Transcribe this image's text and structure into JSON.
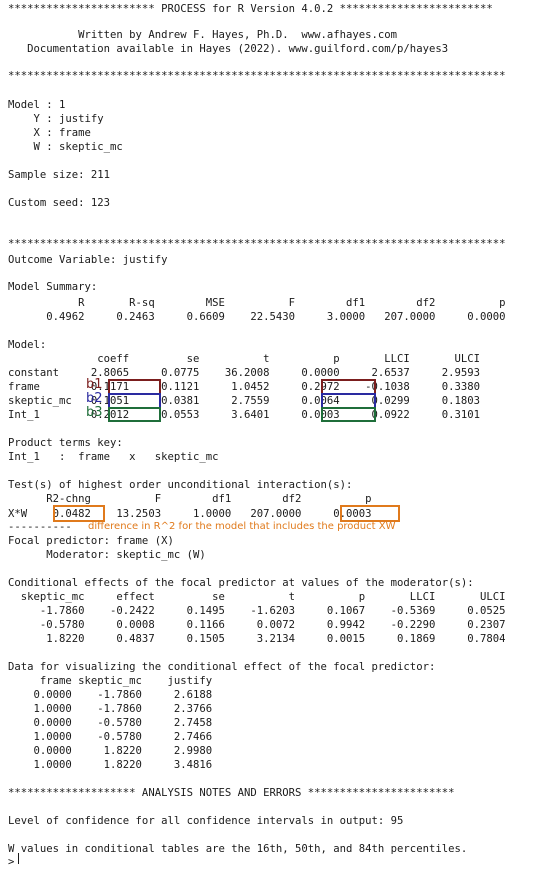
{
  "header": {
    "rule_top": "*********************** PROCESS for R Version 4.0.2 ************************",
    "author_line": "           Written by Andrew F. Hayes, Ph.D.  www.afhayes.com",
    "doc_line": "   Documentation available in Hayes (2022). www.guilford.com/p/hayes3"
  },
  "rule_stars": "******************************************************************************",
  "model": {
    "model_line": "Model : 1",
    "y_line": "    Y : justify",
    "x_line": "    X : frame",
    "w_line": "    W : skeptic_mc"
  },
  "sample_line": "Sample size: 211",
  "seed_line": "Custom seed: 123",
  "outcome_line": "Outcome Variable: justify",
  "model_summary": {
    "title": "Model Summary:",
    "header": "           R       R-sq        MSE          F        df1        df2          p",
    "row": "      0.4962     0.2463     0.6609    22.5430     3.0000   207.0000     0.0000"
  },
  "coef_table": {
    "title": "Model:",
    "header": "              coeff         se          t          p       LLCI       ULCI",
    "rows": [
      "constant     2.8065     0.0775    36.2008     0.0000     2.6537     2.9593",
      "frame        0.1171     0.1121     1.0452     0.2972    -0.1038     0.3380",
      "skeptic_mc   0.1051     0.0381     2.7559     0.0064     0.0299     0.1803",
      "Int_1        0.2012     0.0553     3.6401     0.0003     0.0922     0.3101"
    ]
  },
  "labels": {
    "b1": "b1",
    "b2": "b2",
    "b3": "b3"
  },
  "product_key": {
    "title": "Product terms key:",
    "row": "Int_1   :  frame   x   skeptic_mc"
  },
  "interaction_test": {
    "title": "Test(s) of highest order unconditional interaction(s):",
    "header": "      R2-chng          F        df1        df2          p",
    "row": "X*W    0.0482    13.2503     1.0000   207.0000     0.0003",
    "dashes": "----------",
    "annotation": "difference in R^2 for the model that includes the product XW"
  },
  "focal": {
    "predictor": "Focal predictor: frame (X)",
    "moderator": "      Moderator: skeptic_mc (W)"
  },
  "conditional": {
    "title": "Conditional effects of the focal predictor at values of the moderator(s):",
    "header": "  skeptic_mc     effect         se          t          p       LLCI       ULCI",
    "rows": [
      "     -1.7860    -0.2422     0.1495    -1.6203     0.1067    -0.5369     0.0525",
      "     -0.5780     0.0008     0.1166     0.0072     0.9942    -0.2290     0.2307",
      "      1.8220     0.4837     0.1505     3.2134     0.0015     0.1869     0.7804"
    ]
  },
  "visualize": {
    "title": "Data for visualizing the conditional effect of the focal predictor:",
    "header": "     frame skeptic_mc    justify",
    "rows": [
      "    0.0000    -1.7860     2.6188",
      "    1.0000    -1.7860     2.3766",
      "    0.0000    -0.5780     2.7458",
      "    1.0000    -0.5780     2.7466",
      "    0.0000     1.8220     2.9980",
      "    1.0000     1.8220     3.4816"
    ]
  },
  "notes": {
    "rule": "******************** ANALYSIS NOTES AND ERRORS ***********************",
    "confidence": "Level of confidence for all confidence intervals in output: 95",
    "w_values": "W values in conditional tables are the 16th, 50th, and 84th percentiles.",
    "prompt": ">"
  },
  "colors": {
    "b1": "#7b1e1e",
    "b2": "#2a2aa0",
    "b3": "#1f6e3a",
    "annotation": "#e07a1c"
  }
}
